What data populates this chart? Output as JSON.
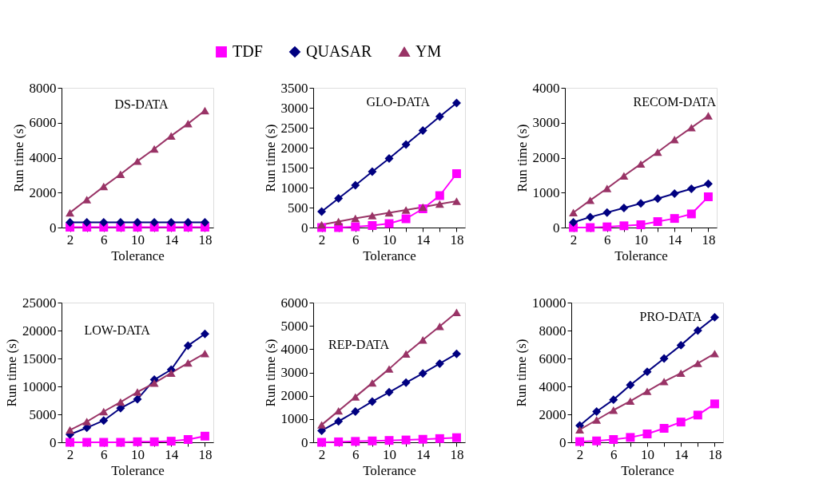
{
  "chart_data": [
    {
      "type": "line",
      "title": "DS-DATA",
      "xlabel": "Tolerance",
      "ylabel": "Run time (s)",
      "legend": "top",
      "line_style": "solid",
      "grid": false,
      "x": [
        2,
        4,
        6,
        8,
        10,
        12,
        14,
        16,
        18
      ],
      "xlim": [
        1,
        19
      ],
      "xticks": [
        2,
        {
          "value": 4,
          "label": null
        },
        6,
        {
          "value": 8,
          "label": null
        },
        10,
        {
          "value": 12,
          "label": null
        },
        14,
        {
          "value": 16,
          "label": null
        },
        18
      ],
      "ylim": [
        0,
        8000
      ],
      "yticks": [
        0,
        2000,
        4000,
        6000,
        8000
      ],
      "series": [
        {
          "name": "TDF",
          "color": "#ff00ff",
          "marker": "square",
          "values": [
            20,
            20,
            20,
            20,
            20,
            20,
            20,
            20,
            20
          ]
        },
        {
          "name": "QUASAR",
          "color": "#000080",
          "marker": "diamond",
          "values": [
            300,
            300,
            300,
            300,
            300,
            300,
            300,
            300,
            300
          ]
        },
        {
          "name": "YM",
          "color": "#993366",
          "marker": "triangle",
          "values": [
            850,
            1600,
            2350,
            3050,
            3800,
            4500,
            5250,
            5950,
            6700
          ]
        }
      ]
    },
    {
      "type": "line",
      "title": "GLO-DATA",
      "xlabel": "Tolerance",
      "ylabel": "Run time (s)",
      "line_style": "solid",
      "grid": false,
      "x": [
        2,
        4,
        6,
        8,
        10,
        12,
        14,
        16,
        18
      ],
      "xlim": [
        1,
        19
      ],
      "xticks": [
        2,
        {
          "value": 4,
          "label": null
        },
        6,
        {
          "value": 8,
          "label": null
        },
        10,
        {
          "value": 12,
          "label": null
        },
        14,
        {
          "value": 16,
          "label": null
        },
        18
      ],
      "ylim": [
        0,
        3500
      ],
      "yticks": [
        0,
        500,
        1000,
        1500,
        2000,
        2500,
        3000,
        3500
      ],
      "series": [
        {
          "name": "TDF",
          "color": "#ff00ff",
          "marker": "square",
          "values": [
            0,
            0,
            20,
            50,
            100,
            220,
            470,
            800,
            1350
          ]
        },
        {
          "name": "QUASAR",
          "color": "#000080",
          "marker": "diamond",
          "values": [
            400,
            730,
            1060,
            1400,
            1730,
            2080,
            2430,
            2780,
            3120
          ]
        },
        {
          "name": "YM",
          "color": "#993366",
          "marker": "triangle",
          "values": [
            70,
            150,
            230,
            300,
            370,
            440,
            510,
            590,
            660
          ]
        }
      ]
    },
    {
      "type": "line",
      "title": "RECOM-DATA",
      "xlabel": "Tolerance",
      "ylabel": "Run time (s)",
      "line_style": "solid",
      "grid": false,
      "x": [
        2,
        4,
        6,
        8,
        10,
        12,
        14,
        16,
        18
      ],
      "xlim": [
        1,
        19
      ],
      "xticks": [
        2,
        {
          "value": 4,
          "label": null
        },
        6,
        {
          "value": 8,
          "label": null
        },
        10,
        {
          "value": 12,
          "label": null
        },
        14,
        {
          "value": 16,
          "label": null
        },
        18
      ],
      "ylim": [
        0,
        4000
      ],
      "yticks": [
        0,
        1000,
        2000,
        3000,
        4000
      ],
      "series": [
        {
          "name": "TDF",
          "color": "#ff00ff",
          "marker": "square",
          "values": [
            0,
            0,
            20,
            50,
            80,
            170,
            260,
            390,
            880
          ]
        },
        {
          "name": "QUASAR",
          "color": "#000080",
          "marker": "diamond",
          "values": [
            150,
            300,
            430,
            560,
            690,
            830,
            970,
            1110,
            1250
          ]
        },
        {
          "name": "YM",
          "color": "#993366",
          "marker": "triangle",
          "values": [
            430,
            780,
            1120,
            1480,
            1820,
            2160,
            2520,
            2860,
            3200
          ]
        }
      ]
    },
    {
      "type": "line",
      "title": "LOW-DATA",
      "xlabel": "Tolerance",
      "ylabel": "Run time (s)",
      "line_style": "solid",
      "grid": false,
      "x": [
        2,
        4,
        6,
        8,
        10,
        12,
        14,
        16,
        18
      ],
      "xlim": [
        1,
        19
      ],
      "xticks": [
        2,
        {
          "value": 4,
          "label": null
        },
        6,
        {
          "value": 8,
          "label": null
        },
        10,
        {
          "value": 12,
          "label": null
        },
        14,
        {
          "value": 16,
          "label": null
        },
        18
      ],
      "ylim": [
        0,
        25000
      ],
      "yticks": [
        0,
        5000,
        10000,
        15000,
        20000,
        25000
      ],
      "series": [
        {
          "name": "TDF",
          "color": "#ff00ff",
          "marker": "square",
          "values": [
            0,
            0,
            0,
            0,
            100,
            100,
            200,
            500,
            1100
          ]
        },
        {
          "name": "QUASAR",
          "color": "#000080",
          "marker": "diamond",
          "values": [
            1400,
            2600,
            3900,
            6100,
            7700,
            11200,
            13000,
            17300,
            19400
          ]
        },
        {
          "name": "YM",
          "color": "#993366",
          "marker": "triangle",
          "values": [
            2200,
            3700,
            5500,
            7200,
            9000,
            10600,
            12400,
            14200,
            15900
          ]
        }
      ]
    },
    {
      "type": "line",
      "title": "REP-DATA",
      "xlabel": "Tolerance",
      "ylabel": "Run time (s)",
      "line_style": "solid",
      "grid": false,
      "x": [
        2,
        4,
        6,
        8,
        10,
        12,
        14,
        16,
        18
      ],
      "xlim": [
        1,
        19
      ],
      "xticks": [
        2,
        {
          "value": 4,
          "label": null
        },
        6,
        {
          "value": 8,
          "label": null
        },
        10,
        {
          "value": 12,
          "label": null
        },
        14,
        {
          "value": 16,
          "label": null
        },
        18
      ],
      "ylim": [
        0,
        6000
      ],
      "yticks": [
        0,
        1000,
        2000,
        3000,
        4000,
        5000,
        6000
      ],
      "series": [
        {
          "name": "TDF",
          "color": "#ff00ff",
          "marker": "square",
          "values": [
            0,
            20,
            40,
            60,
            80,
            100,
            130,
            160,
            200
          ]
        },
        {
          "name": "QUASAR",
          "color": "#000080",
          "marker": "diamond",
          "values": [
            500,
            900,
            1320,
            1750,
            2150,
            2560,
            2960,
            3380,
            3800
          ]
        },
        {
          "name": "YM",
          "color": "#993366",
          "marker": "triangle",
          "values": [
            750,
            1350,
            1950,
            2550,
            3150,
            3800,
            4400,
            4980,
            5580
          ]
        }
      ]
    },
    {
      "type": "line",
      "title": "PRO-DATA",
      "xlabel": "Tolerance",
      "ylabel": "Run time (s)",
      "line_style": "solid",
      "grid": false,
      "x": [
        2,
        4,
        6,
        8,
        10,
        12,
        14,
        16,
        18
      ],
      "xlim": [
        1,
        19
      ],
      "xticks": [
        2,
        {
          "value": 4,
          "label": null
        },
        6,
        {
          "value": 8,
          "label": null
        },
        10,
        {
          "value": 12,
          "label": null
        },
        14,
        {
          "value": 16,
          "label": null
        },
        18
      ],
      "ylim": [
        0,
        10000
      ],
      "yticks": [
        0,
        2000,
        4000,
        6000,
        8000,
        10000
      ],
      "series": [
        {
          "name": "TDF",
          "color": "#ff00ff",
          "marker": "square",
          "values": [
            50,
            100,
            200,
            350,
            600,
            1000,
            1450,
            1950,
            2750
          ]
        },
        {
          "name": "QUASAR",
          "color": "#000080",
          "marker": "diamond",
          "values": [
            1200,
            2200,
            3050,
            4100,
            5050,
            6000,
            6950,
            8000,
            8950
          ]
        },
        {
          "name": "YM",
          "color": "#993366",
          "marker": "triangle",
          "values": [
            900,
            1600,
            2300,
            2950,
            3650,
            4350,
            4950,
            5650,
            6350
          ]
        }
      ]
    }
  ]
}
